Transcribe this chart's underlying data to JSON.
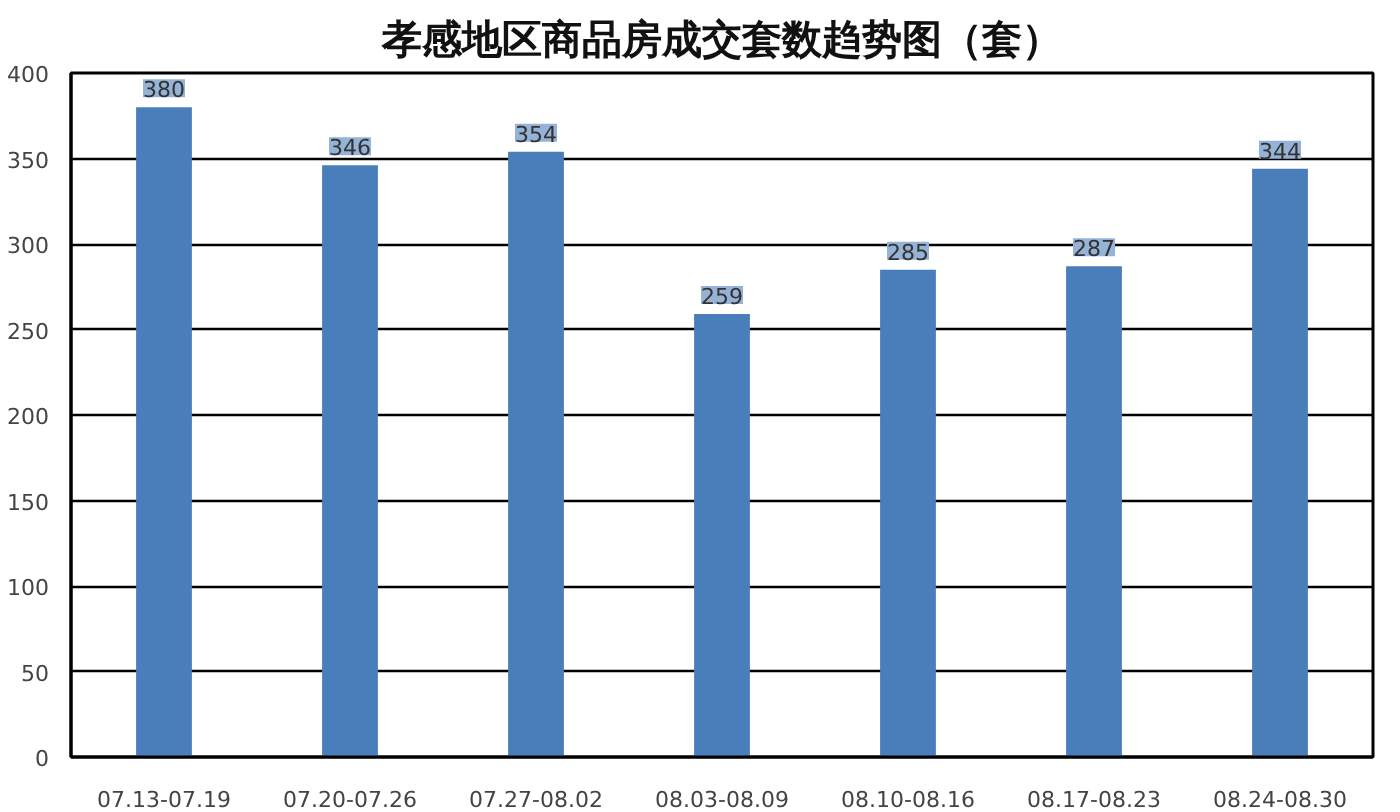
{
  "chart_data": {
    "type": "bar",
    "title": "孝感地区商品房成交套数趋势图（套）",
    "categories": [
      "07.13-07.19",
      "07.20-07.26",
      "07.27-08.02",
      "08.03-08.09",
      "08.10-08.16",
      "08.17-08.23",
      "08.24-08.30"
    ],
    "values": [
      380,
      346,
      354,
      259,
      285,
      287,
      344
    ],
    "color": "#4a7ebb",
    "ylim": [
      0,
      400
    ],
    "yticks": [
      0,
      50,
      100,
      150,
      200,
      250,
      300,
      350,
      400
    ],
    "grid": "y",
    "data_labels": true
  }
}
